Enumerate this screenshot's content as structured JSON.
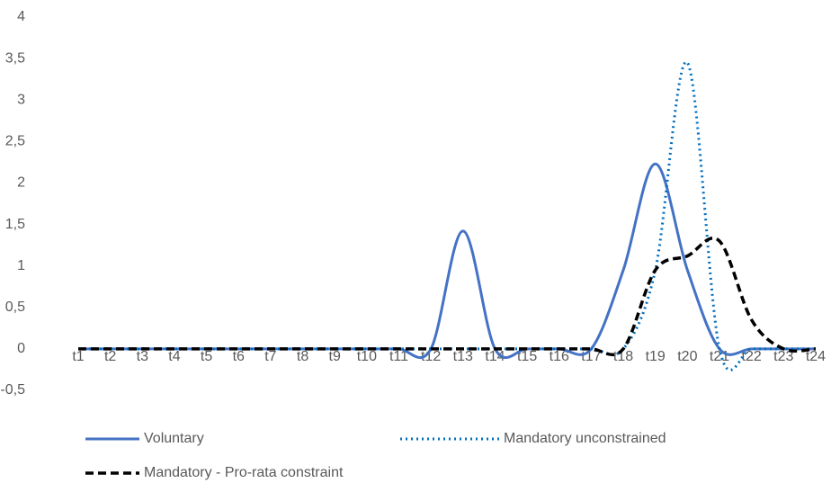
{
  "chart_data": {
    "type": "line",
    "categories": [
      "t1",
      "t2",
      "t3",
      "t4",
      "t5",
      "t6",
      "t7",
      "t8",
      "t9",
      "t10",
      "t11",
      "t12",
      "t13",
      "t14",
      "t15",
      "t16",
      "t17",
      "t18",
      "t19",
      "t20",
      "t21",
      "t22",
      "t23",
      "t24"
    ],
    "series": [
      {
        "name": "Voluntary",
        "color": "#4472c4",
        "style": "solid",
        "values": [
          0,
          0,
          0,
          0,
          0,
          0,
          0,
          0,
          0,
          0,
          0,
          0,
          1.42,
          0,
          0,
          0,
          0,
          0.95,
          2.23,
          0.95,
          0,
          0,
          0,
          0
        ]
      },
      {
        "name": "Mandatory unconstrained",
        "color": "#0070c0",
        "style": "dotted",
        "values": [
          0,
          0,
          0,
          0,
          0,
          0,
          0,
          0,
          0,
          0,
          0,
          0,
          0,
          0,
          0,
          0,
          0,
          0,
          0.95,
          3.45,
          0,
          0,
          0,
          0
        ]
      },
      {
        "name": "Mandatory - Pro-rata constraint",
        "color": "#000000",
        "style": "dashed",
        "values": [
          0,
          0,
          0,
          0,
          0,
          0,
          0,
          0,
          0,
          0,
          0,
          0,
          0,
          0,
          0,
          0,
          0,
          0,
          0.95,
          1.12,
          1.3,
          0.35,
          0,
          0
        ]
      }
    ],
    "ylim": [
      -0.5,
      4
    ],
    "yticks": [
      {
        "value": -0.5,
        "label": "-0,5"
      },
      0,
      {
        "value": 0.5,
        "label": "0,5"
      },
      1,
      {
        "value": 1.5,
        "label": "1,5"
      },
      2,
      {
        "value": 2.5,
        "label": "2,5"
      },
      3,
      {
        "value": 3.5,
        "label": "3,5"
      },
      4
    ],
    "grid": false,
    "smooth": true,
    "legend": "bottom"
  }
}
